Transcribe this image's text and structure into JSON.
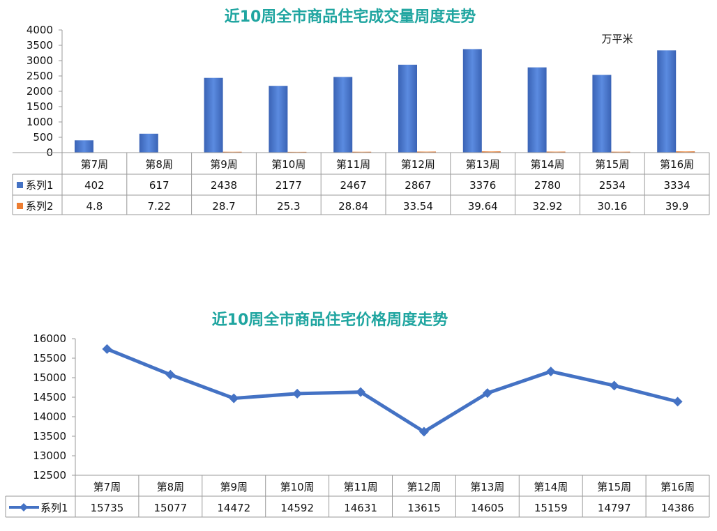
{
  "chart_data": [
    {
      "type": "bar",
      "title": "近10周全市商品住宅成交量周度走势",
      "unit_label": "万平米",
      "categories": [
        "第7周",
        "第8周",
        "第9周",
        "第10周",
        "第11周",
        "第12周",
        "第13周",
        "第14周",
        "第15周",
        "第16周"
      ],
      "series": [
        {
          "name": "系列1",
          "values": [
            402,
            617,
            2438,
            2177,
            2467,
            2867,
            3376,
            2780,
            2534,
            3334
          ],
          "color": "#4472c4"
        },
        {
          "name": "系列2",
          "values": [
            4.8,
            7.22,
            28.7,
            25.3,
            28.84,
            33.54,
            39.64,
            32.92,
            30.16,
            39.9
          ],
          "color": "#ed7d31"
        }
      ],
      "ylim": [
        0,
        4000
      ],
      "yticks": [
        "0",
        "500",
        "1000",
        "1500",
        "2000",
        "2500",
        "3000",
        "3500",
        "4000"
      ],
      "data_table": true
    },
    {
      "type": "line",
      "title": "近10周全市商品住宅价格周度走势",
      "categories": [
        "第7周",
        "第8周",
        "第9周",
        "第10周",
        "第11周",
        "第12周",
        "第13周",
        "第14周",
        "第15周",
        "第16周"
      ],
      "series": [
        {
          "name": "系列1",
          "values": [
            15735,
            15077,
            14472,
            14592,
            14631,
            13615,
            14605,
            15159,
            14797,
            14386
          ],
          "color": "#4472c4"
        }
      ],
      "ylim": [
        12500,
        16000
      ],
      "yticks": [
        "12500",
        "13000",
        "13500",
        "14000",
        "14500",
        "15000",
        "15500",
        "16000"
      ],
      "data_table": true
    }
  ]
}
